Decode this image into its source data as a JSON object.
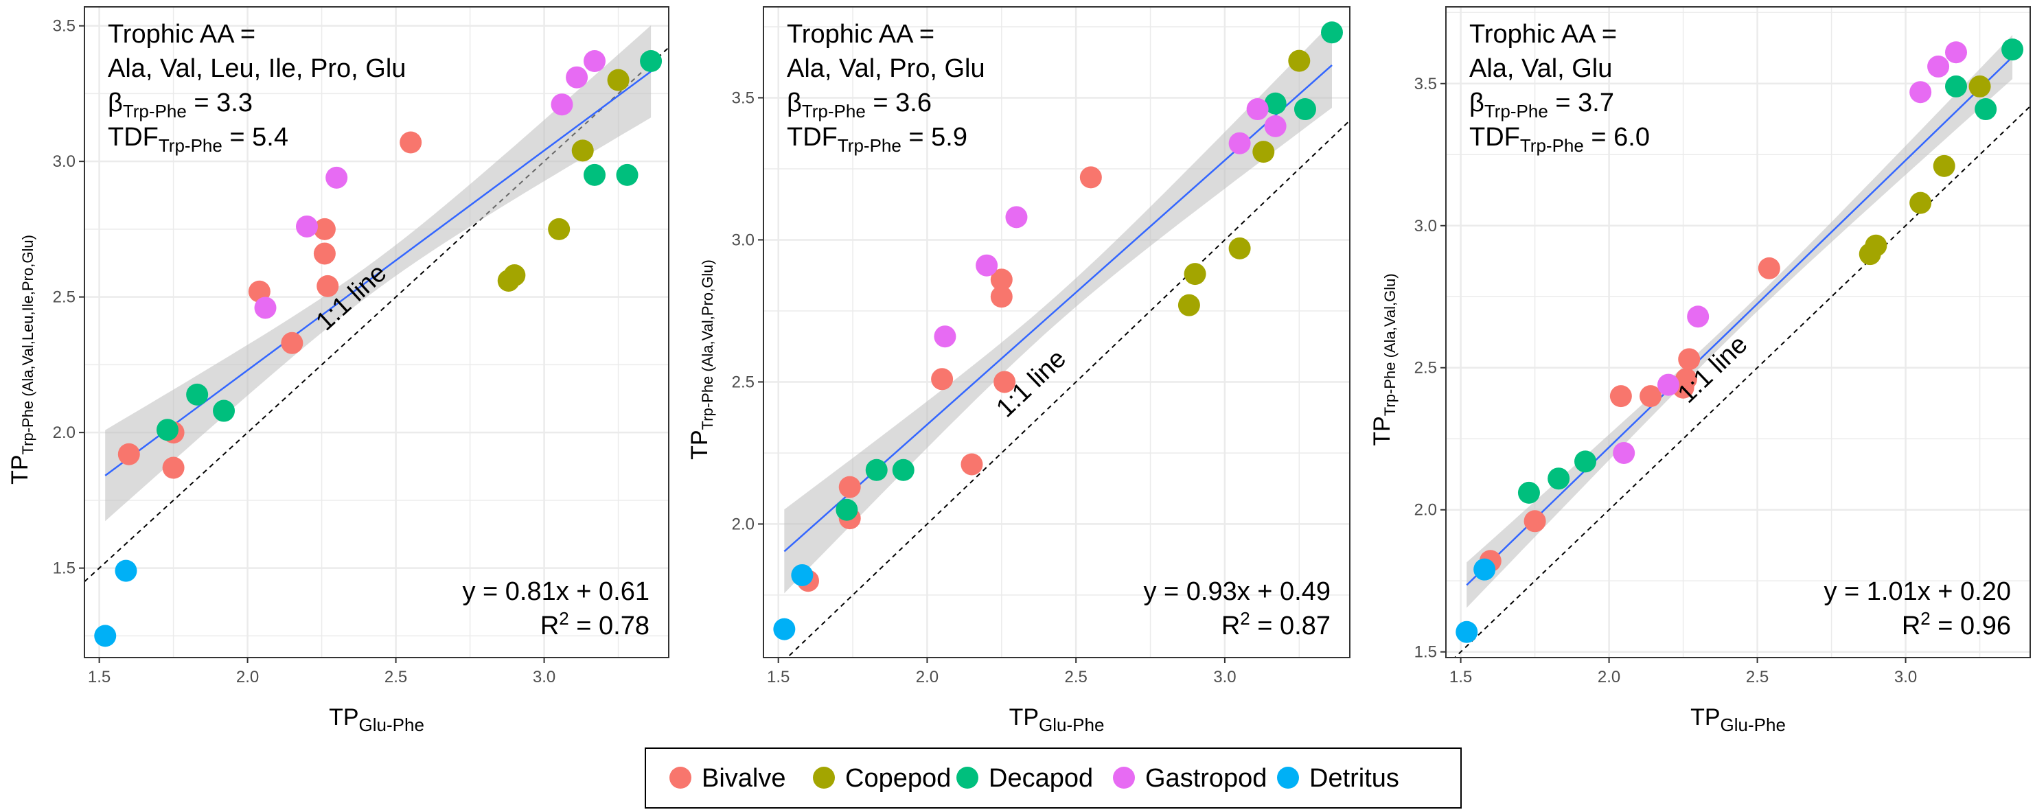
{
  "chart_data": [
    {
      "type": "scatter",
      "trophic_label": "Trophic AA =",
      "trophic_aa": "Ala, Val, Leu, Ile, Pro, Glu",
      "beta_label": "β",
      "beta_sub": "Trp-Phe",
      "beta_value": " = 3.3",
      "tdf_label": "TDF",
      "tdf_sub": "Trp-Phe",
      "tdf_value": " = 5.4",
      "equation": "y = 0.81x + 0.61",
      "r2_label": "R",
      "r2_sup": "2",
      "r2_value": " = 0.78",
      "oneone_label": "1:1 line",
      "xlabel_main": "TP",
      "xlabel_sub": "Glu-Phe",
      "ylabel_main": "TP",
      "ylabel_sub": "Trp-Phe (Ala,Val,Leu,Ile,Pro,Glu)",
      "xlim": [
        1.45,
        3.42
      ],
      "ylim": [
        1.17,
        3.57
      ],
      "xticks": [
        "1.5",
        "2.0",
        "2.5",
        "3.0"
      ],
      "yticks": [
        "1.5",
        "2.0",
        "2.5",
        "3.0",
        "3.5"
      ],
      "fit": {
        "slope": 0.81,
        "intercept": 0.61,
        "band": 0.17
      },
      "points": [
        {
          "g": "Bivalve",
          "x": 1.6,
          "y": 1.92
        },
        {
          "g": "Bivalve",
          "x": 1.75,
          "y": 1.87
        },
        {
          "g": "Bivalve",
          "x": 1.75,
          "y": 2.0
        },
        {
          "g": "Bivalve",
          "x": 2.04,
          "y": 2.52
        },
        {
          "g": "Bivalve",
          "x": 2.15,
          "y": 2.33
        },
        {
          "g": "Bivalve",
          "x": 2.26,
          "y": 2.75
        },
        {
          "g": "Bivalve",
          "x": 2.26,
          "y": 2.66
        },
        {
          "g": "Bivalve",
          "x": 2.27,
          "y": 2.54
        },
        {
          "g": "Bivalve",
          "x": 2.55,
          "y": 3.07
        },
        {
          "g": "Copepod",
          "x": 2.88,
          "y": 2.56
        },
        {
          "g": "Copepod",
          "x": 2.9,
          "y": 2.58
        },
        {
          "g": "Copepod",
          "x": 3.05,
          "y": 2.75
        },
        {
          "g": "Copepod",
          "x": 3.13,
          "y": 3.04
        },
        {
          "g": "Copepod",
          "x": 3.25,
          "y": 3.3
        },
        {
          "g": "Decapod",
          "x": 1.73,
          "y": 2.01
        },
        {
          "g": "Decapod",
          "x": 1.83,
          "y": 2.14
        },
        {
          "g": "Decapod",
          "x": 1.92,
          "y": 2.08
        },
        {
          "g": "Decapod",
          "x": 3.17,
          "y": 2.95
        },
        {
          "g": "Decapod",
          "x": 3.28,
          "y": 2.95
        },
        {
          "g": "Decapod",
          "x": 3.36,
          "y": 3.37
        },
        {
          "g": "Gastropod",
          "x": 2.06,
          "y": 2.46
        },
        {
          "g": "Gastropod",
          "x": 2.2,
          "y": 2.76
        },
        {
          "g": "Gastropod",
          "x": 2.3,
          "y": 2.94
        },
        {
          "g": "Gastropod",
          "x": 3.06,
          "y": 3.21
        },
        {
          "g": "Gastropod",
          "x": 3.11,
          "y": 3.31
        },
        {
          "g": "Gastropod",
          "x": 3.17,
          "y": 3.37
        },
        {
          "g": "Detritus",
          "x": 1.52,
          "y": 1.25
        },
        {
          "g": "Detritus",
          "x": 1.59,
          "y": 1.49
        }
      ]
    },
    {
      "type": "scatter",
      "trophic_label": "Trophic AA =",
      "trophic_aa": "Ala, Val, Pro, Glu",
      "beta_label": "β",
      "beta_sub": "Trp-Phe",
      "beta_value": " = 3.6",
      "tdf_label": "TDF",
      "tdf_sub": "Trp-Phe",
      "tdf_value": " = 5.9",
      "equation": "y = 0.93x + 0.49",
      "r2_label": "R",
      "r2_sup": "2",
      "r2_value": " = 0.87",
      "oneone_label": "1:1 line",
      "xlabel_main": "TP",
      "xlabel_sub": "Glu-Phe",
      "ylabel_main": "TP",
      "ylabel_sub": "Trp-Phe (Ala,Val,Pro,Glu)",
      "xlim": [
        1.45,
        3.42
      ],
      "ylim": [
        1.53,
        3.82
      ],
      "xticks": [
        "1.5",
        "2.0",
        "2.5",
        "3.0"
      ],
      "yticks": [
        "2.0",
        "2.5",
        "3.0",
        "3.5"
      ],
      "fit": {
        "slope": 0.93,
        "intercept": 0.49,
        "band": 0.15
      },
      "points": [
        {
          "g": "Bivalve",
          "x": 1.6,
          "y": 1.8
        },
        {
          "g": "Bivalve",
          "x": 1.74,
          "y": 2.02
        },
        {
          "g": "Bivalve",
          "x": 1.74,
          "y": 2.13
        },
        {
          "g": "Bivalve",
          "x": 2.05,
          "y": 2.51
        },
        {
          "g": "Bivalve",
          "x": 2.15,
          "y": 2.21
        },
        {
          "g": "Bivalve",
          "x": 2.25,
          "y": 2.86
        },
        {
          "g": "Bivalve",
          "x": 2.25,
          "y": 2.8
        },
        {
          "g": "Bivalve",
          "x": 2.26,
          "y": 2.5
        },
        {
          "g": "Bivalve",
          "x": 2.55,
          "y": 3.22
        },
        {
          "g": "Copepod",
          "x": 2.88,
          "y": 2.77
        },
        {
          "g": "Copepod",
          "x": 2.9,
          "y": 2.88
        },
        {
          "g": "Copepod",
          "x": 3.05,
          "y": 2.97
        },
        {
          "g": "Copepod",
          "x": 3.13,
          "y": 3.31
        },
        {
          "g": "Copepod",
          "x": 3.25,
          "y": 3.63
        },
        {
          "g": "Decapod",
          "x": 1.73,
          "y": 2.05
        },
        {
          "g": "Decapod",
          "x": 1.83,
          "y": 2.19
        },
        {
          "g": "Decapod",
          "x": 1.92,
          "y": 2.19
        },
        {
          "g": "Decapod",
          "x": 3.17,
          "y": 3.48
        },
        {
          "g": "Decapod",
          "x": 3.27,
          "y": 3.46
        },
        {
          "g": "Decapod",
          "x": 3.36,
          "y": 3.73
        },
        {
          "g": "Gastropod",
          "x": 2.06,
          "y": 2.66
        },
        {
          "g": "Gastropod",
          "x": 2.2,
          "y": 2.91
        },
        {
          "g": "Gastropod",
          "x": 2.3,
          "y": 3.08
        },
        {
          "g": "Gastropod",
          "x": 3.05,
          "y": 3.34
        },
        {
          "g": "Gastropod",
          "x": 3.11,
          "y": 3.46
        },
        {
          "g": "Gastropod",
          "x": 3.17,
          "y": 3.4
        },
        {
          "g": "Detritus",
          "x": 1.52,
          "y": 1.63
        },
        {
          "g": "Detritus",
          "x": 1.58,
          "y": 1.82
        }
      ]
    },
    {
      "type": "scatter",
      "trophic_label": "Trophic AA =",
      "trophic_aa": "Ala, Val, Glu",
      "beta_label": "β",
      "beta_sub": "Trp-Phe",
      "beta_value": " = 3.7",
      "tdf_label": "TDF",
      "tdf_sub": "Trp-Phe",
      "tdf_value": " = 6.0",
      "equation": "y = 1.01x + 0.20",
      "r2_label": "R",
      "r2_sup": "2",
      "r2_value": " = 0.96",
      "oneone_label": "1:1 line",
      "xlabel_main": "TP",
      "xlabel_sub": "Glu-Phe",
      "ylabel_main": "TP",
      "ylabel_sub": "Trp-Phe (Ala,Val,Glu)",
      "xlim": [
        1.45,
        3.42
      ],
      "ylim": [
        1.48,
        3.77
      ],
      "xticks": [
        "1.5",
        "2.0",
        "2.5",
        "3.0"
      ],
      "yticks": [
        "1.5",
        "2.0",
        "2.5",
        "3.0",
        "3.5"
      ],
      "fit": {
        "slope": 1.01,
        "intercept": 0.2,
        "band": 0.08
      },
      "points": [
        {
          "g": "Bivalve",
          "x": 1.6,
          "y": 1.82
        },
        {
          "g": "Bivalve",
          "x": 1.75,
          "y": 1.96
        },
        {
          "g": "Bivalve",
          "x": 2.04,
          "y": 2.4
        },
        {
          "g": "Bivalve",
          "x": 2.14,
          "y": 2.4
        },
        {
          "g": "Bivalve",
          "x": 2.25,
          "y": 2.43
        },
        {
          "g": "Bivalve",
          "x": 2.26,
          "y": 2.46
        },
        {
          "g": "Bivalve",
          "x": 2.27,
          "y": 2.53
        },
        {
          "g": "Bivalve",
          "x": 2.54,
          "y": 2.85
        },
        {
          "g": "Copepod",
          "x": 2.88,
          "y": 2.9
        },
        {
          "g": "Copepod",
          "x": 2.9,
          "y": 2.93
        },
        {
          "g": "Copepod",
          "x": 3.05,
          "y": 3.08
        },
        {
          "g": "Copepod",
          "x": 3.13,
          "y": 3.21
        },
        {
          "g": "Copepod",
          "x": 3.25,
          "y": 3.49
        },
        {
          "g": "Decapod",
          "x": 1.73,
          "y": 2.06
        },
        {
          "g": "Decapod",
          "x": 1.83,
          "y": 2.11
        },
        {
          "g": "Decapod",
          "x": 1.92,
          "y": 2.17
        },
        {
          "g": "Decapod",
          "x": 3.17,
          "y": 3.49
        },
        {
          "g": "Decapod",
          "x": 3.27,
          "y": 3.41
        },
        {
          "g": "Decapod",
          "x": 3.36,
          "y": 3.62
        },
        {
          "g": "Gastropod",
          "x": 2.05,
          "y": 2.2
        },
        {
          "g": "Gastropod",
          "x": 2.2,
          "y": 2.44
        },
        {
          "g": "Gastropod",
          "x": 2.3,
          "y": 2.68
        },
        {
          "g": "Gastropod",
          "x": 3.05,
          "y": 3.47
        },
        {
          "g": "Gastropod",
          "x": 3.11,
          "y": 3.56
        },
        {
          "g": "Gastropod",
          "x": 3.17,
          "y": 3.61
        },
        {
          "g": "Detritus",
          "x": 1.52,
          "y": 1.57
        },
        {
          "g": "Detritus",
          "x": 1.58,
          "y": 1.79
        }
      ]
    }
  ],
  "legend": {
    "items": [
      {
        "label": "Bivalve",
        "color": "#F8766D"
      },
      {
        "label": "Copepod",
        "color": "#A3A500"
      },
      {
        "label": "Decapod",
        "color": "#00BF7D"
      },
      {
        "label": "Gastropod",
        "color": "#E76BF3"
      },
      {
        "label": "Detritus",
        "color": "#00B0F6"
      }
    ]
  },
  "colors": {
    "fit_line": "#3366FF",
    "band": "#BDBDBD",
    "grid": "#EBEBEB",
    "border": "#333333"
  }
}
